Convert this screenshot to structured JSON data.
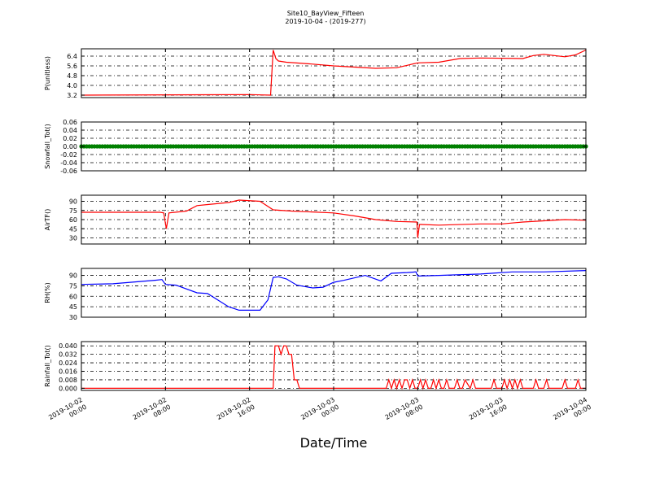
{
  "chart_data": {
    "type": "line",
    "title": "Site10_BayView_Fifteen",
    "subtitle": "2019-10-04 - (2019-277)",
    "xlabel": "Date/Time",
    "xlim": [
      "2019-10-02 00:00",
      "2019-10-04 00:00"
    ],
    "x_ticks": [
      "2019-10-02 00:00",
      "2019-10-02 08:00",
      "2019-10-02 16:00",
      "2019-10-03 00:00",
      "2019-10-03 08:00",
      "2019-10-03 16:00",
      "2019-10-04 00:00"
    ],
    "x_tick_labels": [
      [
        "2019-10-02",
        "00:00"
      ],
      [
        "2019-10-02",
        "08:00"
      ],
      [
        "2019-10-02",
        "16:00"
      ],
      [
        "2019-10-03",
        "00:00"
      ],
      [
        "2019-10-03",
        "08:00"
      ],
      [
        "2019-10-03",
        "16:00"
      ],
      [
        "2019-10-04",
        "00:00"
      ]
    ],
    "grid": true,
    "panels": [
      {
        "ylabel": "P(unitless)",
        "ylim": [
          3.0,
          7.0
        ],
        "yticks": [
          3.2,
          4.0,
          4.8,
          5.6,
          6.4
        ],
        "tick_labels": [
          "3.2",
          "4.0",
          "4.8",
          "5.6",
          "6.4"
        ],
        "color": "#ff0000",
        "marker": false,
        "series": {
          "x": [
            "2019-10-02 00:00",
            "2019-10-02 16:00",
            "2019-10-02 18:00",
            "2019-10-02 18:15",
            "2019-10-02 18:30",
            "2019-10-02 18:45",
            "2019-10-02 19:30",
            "2019-10-02 22:00",
            "2019-10-03 00:00",
            "2019-10-03 04:00",
            "2019-10-03 06:00",
            "2019-10-03 07:00",
            "2019-10-03 08:00",
            "2019-10-03 10:00",
            "2019-10-03 12:00",
            "2019-10-03 14:00",
            "2019-10-03 18:00",
            "2019-10-03 19:00",
            "2019-10-03 20:00",
            "2019-10-03 21:00",
            "2019-10-03 22:00",
            "2019-10-03 23:00",
            "2019-10-04 00:00"
          ],
          "y": [
            3.2,
            3.25,
            3.2,
            6.9,
            6.2,
            6.0,
            5.9,
            5.75,
            5.6,
            5.4,
            5.45,
            5.65,
            5.85,
            5.9,
            6.2,
            6.25,
            6.2,
            6.45,
            6.55,
            6.45,
            6.35,
            6.5,
            6.9
          ]
        }
      },
      {
        "ylabel": "Snowfall_Tot()",
        "ylim": [
          -0.06,
          0.06
        ],
        "yticks": [
          -0.06,
          -0.04,
          -0.02,
          0.0,
          0.02,
          0.04,
          0.06
        ],
        "tick_labels": [
          "-0.06",
          "-0.04",
          "-0.02",
          "0.00",
          "0.02",
          "0.04",
          "0.06"
        ],
        "color": "#008000",
        "marker": true,
        "series": {
          "x": [
            "2019-10-02 00:00",
            "2019-10-04 00:00"
          ],
          "y": [
            0.0,
            0.0
          ]
        }
      },
      {
        "ylabel": "AirTF()",
        "ylim": [
          20,
          100
        ],
        "yticks": [
          30,
          45,
          60,
          75,
          90
        ],
        "tick_labels": [
          "30",
          "45",
          "60",
          "75",
          "90"
        ],
        "color": "#ff0000",
        "marker": false,
        "series": {
          "x": [
            "2019-10-02 00:00",
            "2019-10-02 04:00",
            "2019-10-02 07:30",
            "2019-10-02 07:50",
            "2019-10-02 08:05",
            "2019-10-02 08:20",
            "2019-10-02 10:00",
            "2019-10-02 11:00",
            "2019-10-02 14:00",
            "2019-10-02 15:00",
            "2019-10-02 17:00",
            "2019-10-02 18:15",
            "2019-10-02 20:00",
            "2019-10-03 00:00",
            "2019-10-03 02:00",
            "2019-10-03 04:00",
            "2019-10-03 06:00",
            "2019-10-03 07:55",
            "2019-10-03 08:00",
            "2019-10-03 08:10",
            "2019-10-03 08:20",
            "2019-10-03 10:00",
            "2019-10-03 14:00",
            "2019-10-03 16:00",
            "2019-10-03 18:00",
            "2019-10-03 20:00",
            "2019-10-03 22:00",
            "2019-10-04 00:00"
          ],
          "y": [
            72,
            72,
            72,
            71,
            45,
            71,
            74,
            83,
            88,
            92,
            90,
            76,
            74,
            71,
            66,
            60,
            57,
            56,
            30,
            52,
            52,
            51,
            53,
            53,
            56,
            58,
            60,
            59
          ]
        }
      },
      {
        "ylabel": "RH(%)",
        "ylim": [
          30,
          100
        ],
        "yticks": [
          30,
          45,
          60,
          75,
          90
        ],
        "tick_labels": [
          "30",
          "45",
          "60",
          "75",
          "90"
        ],
        "color": "#0000ff",
        "marker": false,
        "series": {
          "x": [
            "2019-10-02 00:00",
            "2019-10-02 03:00",
            "2019-10-02 07:00",
            "2019-10-02 07:40",
            "2019-10-02 08:00",
            "2019-10-02 09:00",
            "2019-10-02 11:00",
            "2019-10-02 12:00",
            "2019-10-02 14:00",
            "2019-10-02 15:00",
            "2019-10-02 17:00",
            "2019-10-02 17:45",
            "2019-10-02 18:15",
            "2019-10-02 18:45",
            "2019-10-02 19:30",
            "2019-10-02 20:30",
            "2019-10-02 22:00",
            "2019-10-02 23:00",
            "2019-10-03 00:00",
            "2019-10-03 01:00",
            "2019-10-03 03:00",
            "2019-10-03 04:30",
            "2019-10-03 05:30",
            "2019-10-03 07:00",
            "2019-10-03 07:50",
            "2019-10-03 08:00",
            "2019-10-03 10:00",
            "2019-10-03 14:00",
            "2019-10-03 17:00",
            "2019-10-03 20:00",
            "2019-10-04 00:00"
          ],
          "y": [
            77,
            78,
            83,
            84,
            77,
            76,
            65,
            64,
            45,
            40,
            40,
            55,
            87,
            88,
            85,
            76,
            72,
            73,
            80,
            83,
            90,
            82,
            93,
            94,
            95,
            89,
            90,
            92,
            95,
            95,
            97
          ]
        }
      },
      {
        "ylabel": "Rainfall_Tot()",
        "ylim": [
          -0.002,
          0.044
        ],
        "yticks": [
          0.0,
          0.008,
          0.016,
          0.024,
          0.032,
          0.04
        ],
        "tick_labels": [
          "0.000",
          "0.008",
          "0.016",
          "0.024",
          "0.032",
          "0.040"
        ],
        "color": "#ff0000",
        "marker": false,
        "series": {
          "x": [
            "2019-10-02 00:00",
            "2019-10-02 18:15",
            "2019-10-02 18:25",
            "2019-10-02 18:45",
            "2019-10-02 19:00",
            "2019-10-02 19:15",
            "2019-10-02 19:30",
            "2019-10-02 19:45",
            "2019-10-02 20:00",
            "2019-10-02 20:15",
            "2019-10-02 20:30",
            "2019-10-02 20:45",
            "2019-10-03 05:00",
            "2019-10-03 05:15",
            "2019-10-03 05:30",
            "2019-10-03 05:45",
            "2019-10-03 06:00",
            "2019-10-03 06:15",
            "2019-10-03 06:30",
            "2019-10-03 06:45",
            "2019-10-03 07:00",
            "2019-10-03 07:15",
            "2019-10-03 07:30",
            "2019-10-03 07:45",
            "2019-10-03 08:00",
            "2019-10-03 08:15",
            "2019-10-03 08:30",
            "2019-10-03 08:45",
            "2019-10-03 09:00",
            "2019-10-03 09:15",
            "2019-10-03 09:30",
            "2019-10-03 09:45",
            "2019-10-03 10:00",
            "2019-10-03 10:15",
            "2019-10-03 10:30",
            "2019-10-03 10:45",
            "2019-10-03 11:00",
            "2019-10-03 11:15",
            "2019-10-03 11:30",
            "2019-10-03 11:45",
            "2019-10-03 12:00",
            "2019-10-03 12:15",
            "2019-10-03 12:30",
            "2019-10-03 13:00",
            "2019-10-03 13:15",
            "2019-10-03 13:30",
            "2019-10-03 15:00",
            "2019-10-03 15:15",
            "2019-10-03 15:30",
            "2019-10-03 16:00",
            "2019-10-03 16:15",
            "2019-10-03 16:30",
            "2019-10-03 16:45",
            "2019-10-03 17:00",
            "2019-10-03 17:15",
            "2019-10-03 17:30",
            "2019-10-03 17:45",
            "2019-10-03 18:00",
            "2019-10-03 19:00",
            "2019-10-03 19:15",
            "2019-10-03 19:30",
            "2019-10-03 20:00",
            "2019-10-03 20:15",
            "2019-10-03 20:30",
            "2019-10-03 21:45",
            "2019-10-03 22:00",
            "2019-10-03 22:15",
            "2019-10-03 23:00",
            "2019-10-03 23:15",
            "2019-10-03 23:30",
            "2019-10-04 00:00"
          ],
          "y": [
            0,
            0,
            0.04,
            0.04,
            0.032,
            0.04,
            0.04,
            0.032,
            0.032,
            0.008,
            0.008,
            0,
            0,
            0.008,
            0,
            0.008,
            0,
            0.008,
            0,
            0.008,
            0.008,
            0,
            0.008,
            0,
            0,
            0.008,
            0,
            0.008,
            0,
            0,
            0.008,
            0,
            0.008,
            0,
            0,
            0.008,
            0,
            0,
            0,
            0.008,
            0,
            0,
            0.008,
            0,
            0.008,
            0,
            0,
            0.008,
            0,
            0,
            0.008,
            0,
            0.008,
            0,
            0.008,
            0,
            0.008,
            0,
            0,
            0.008,
            0,
            0,
            0.008,
            0,
            0,
            0.008,
            0,
            0,
            0.008,
            0,
            0
          ]
        }
      }
    ]
  }
}
